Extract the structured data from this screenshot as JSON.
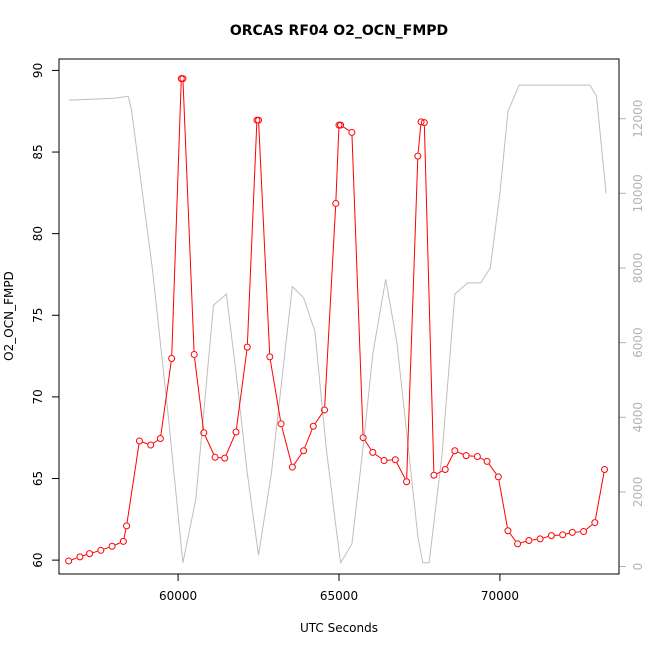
{
  "chart_data": {
    "type": "line",
    "title": "ORCAS RF04 O2_OCN_FMPD",
    "xlabel": "UTC Seconds",
    "ylabel": "O2_OCN_FMPD",
    "xlim": [
      56300,
      73700
    ],
    "ylim": [
      59.15,
      90.7
    ],
    "y2lim": [
      -200,
      13600
    ],
    "x_ticks": [
      60000,
      65000,
      70000
    ],
    "y_ticks": [
      60,
      65,
      70,
      75,
      80,
      85,
      90
    ],
    "y2_ticks": [
      0,
      2000,
      4000,
      6000,
      8000,
      10000,
      12000
    ],
    "grid": false,
    "series": [
      {
        "color": "#ff0000",
        "marker": "open-circle",
        "points": [
          [
            56600,
            59.95
          ],
          [
            56950,
            60.2
          ],
          [
            57250,
            60.4
          ],
          [
            57600,
            60.6
          ],
          [
            57950,
            60.85
          ],
          [
            58300,
            61.15
          ],
          [
            58400,
            62.1
          ],
          [
            58800,
            67.3
          ],
          [
            59150,
            67.05
          ],
          [
            59450,
            67.45
          ],
          [
            59800,
            72.35
          ],
          [
            60100,
            89.5
          ],
          [
            60150,
            89.5
          ],
          [
            60500,
            72.6
          ],
          [
            60800,
            67.8
          ],
          [
            61150,
            66.3
          ],
          [
            61450,
            66.25
          ],
          [
            61800,
            67.85
          ],
          [
            62150,
            73.05
          ],
          [
            62450,
            86.95
          ],
          [
            62500,
            86.95
          ],
          [
            62850,
            72.45
          ],
          [
            63200,
            68.35
          ],
          [
            63550,
            65.7
          ],
          [
            63900,
            66.7
          ],
          [
            64200,
            68.2
          ],
          [
            64550,
            69.2
          ],
          [
            64900,
            81.85
          ],
          [
            65000,
            86.65
          ],
          [
            65050,
            86.65
          ],
          [
            65400,
            86.2
          ],
          [
            65750,
            67.5
          ],
          [
            66050,
            66.6
          ],
          [
            66400,
            66.1
          ],
          [
            66750,
            66.15
          ],
          [
            67100,
            64.8
          ],
          [
            67450,
            84.75
          ],
          [
            67550,
            86.85
          ],
          [
            67650,
            86.8
          ],
          [
            67950,
            65.2
          ],
          [
            68300,
            65.55
          ],
          [
            68600,
            66.7
          ],
          [
            68950,
            66.4
          ],
          [
            69300,
            66.35
          ],
          [
            69600,
            66.05
          ],
          [
            69950,
            65.1
          ],
          [
            70250,
            61.8
          ],
          [
            70550,
            61.0
          ],
          [
            70900,
            61.2
          ],
          [
            71250,
            61.3
          ],
          [
            71600,
            61.5
          ],
          [
            71950,
            61.55
          ],
          [
            72250,
            61.7
          ],
          [
            72600,
            61.75
          ],
          [
            72950,
            62.3
          ],
          [
            73250,
            65.55
          ]
        ]
      },
      {
        "color": "#bebebe",
        "axis": "right",
        "points": [
          [
            56600,
            12500
          ],
          [
            57300,
            12520
          ],
          [
            58000,
            12550
          ],
          [
            58450,
            12600
          ],
          [
            58550,
            12250
          ],
          [
            59200,
            8000
          ],
          [
            59700,
            4000
          ],
          [
            60150,
            100
          ],
          [
            60550,
            1800
          ],
          [
            61100,
            7000
          ],
          [
            61500,
            7300
          ],
          [
            61800,
            5200
          ],
          [
            62150,
            2500
          ],
          [
            62500,
            300
          ],
          [
            62900,
            2500
          ],
          [
            63550,
            7500
          ],
          [
            63900,
            7200
          ],
          [
            64250,
            6300
          ],
          [
            64600,
            3200
          ],
          [
            64900,
            1100
          ],
          [
            65050,
            100
          ],
          [
            65400,
            600
          ],
          [
            65750,
            3200
          ],
          [
            66050,
            5700
          ],
          [
            66450,
            7700
          ],
          [
            66800,
            6000
          ],
          [
            67150,
            3200
          ],
          [
            67450,
            800
          ],
          [
            67600,
            100
          ],
          [
            67800,
            100
          ],
          [
            68200,
            3000
          ],
          [
            68600,
            7300
          ],
          [
            69000,
            7600
          ],
          [
            69400,
            7600
          ],
          [
            69700,
            8000
          ],
          [
            70000,
            10000
          ],
          [
            70250,
            12200
          ],
          [
            70600,
            12900
          ],
          [
            72800,
            12900
          ],
          [
            73000,
            12600
          ],
          [
            73300,
            10000
          ]
        ]
      }
    ]
  }
}
